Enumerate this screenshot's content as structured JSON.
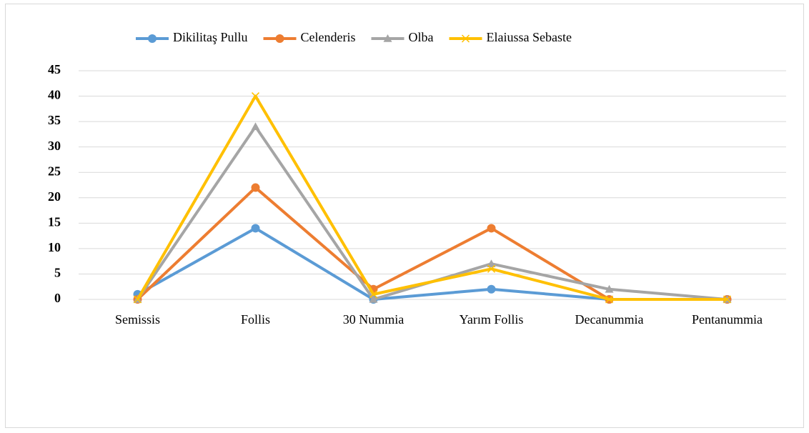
{
  "chart_data": {
    "type": "line",
    "categories": [
      "Semissis",
      "Follis",
      "30 Nummia",
      "Yarım Follis",
      "Decanummia",
      "Pentanummia"
    ],
    "series": [
      {
        "name": "Dikilitaş Pullu",
        "color": "#5b9bd5",
        "marker": "circle",
        "values": [
          1,
          14,
          0,
          2,
          0,
          0
        ]
      },
      {
        "name": "Celenderis",
        "color": "#ed7d31",
        "marker": "circle",
        "values": [
          0,
          22,
          2,
          14,
          0,
          0
        ]
      },
      {
        "name": "Olba",
        "color": "#a5a5a5",
        "marker": "triangle",
        "values": [
          0,
          34,
          0,
          7,
          2,
          0
        ]
      },
      {
        "name": "Elaiussa Sebaste",
        "color": "#ffc000",
        "marker": "x",
        "values": [
          0,
          40,
          1,
          6,
          0,
          0
        ]
      }
    ],
    "ylim": [
      0,
      45
    ],
    "yticks": [
      0,
      5,
      10,
      15,
      20,
      25,
      30,
      35,
      40,
      45
    ],
    "grid": true,
    "legend": "top"
  }
}
